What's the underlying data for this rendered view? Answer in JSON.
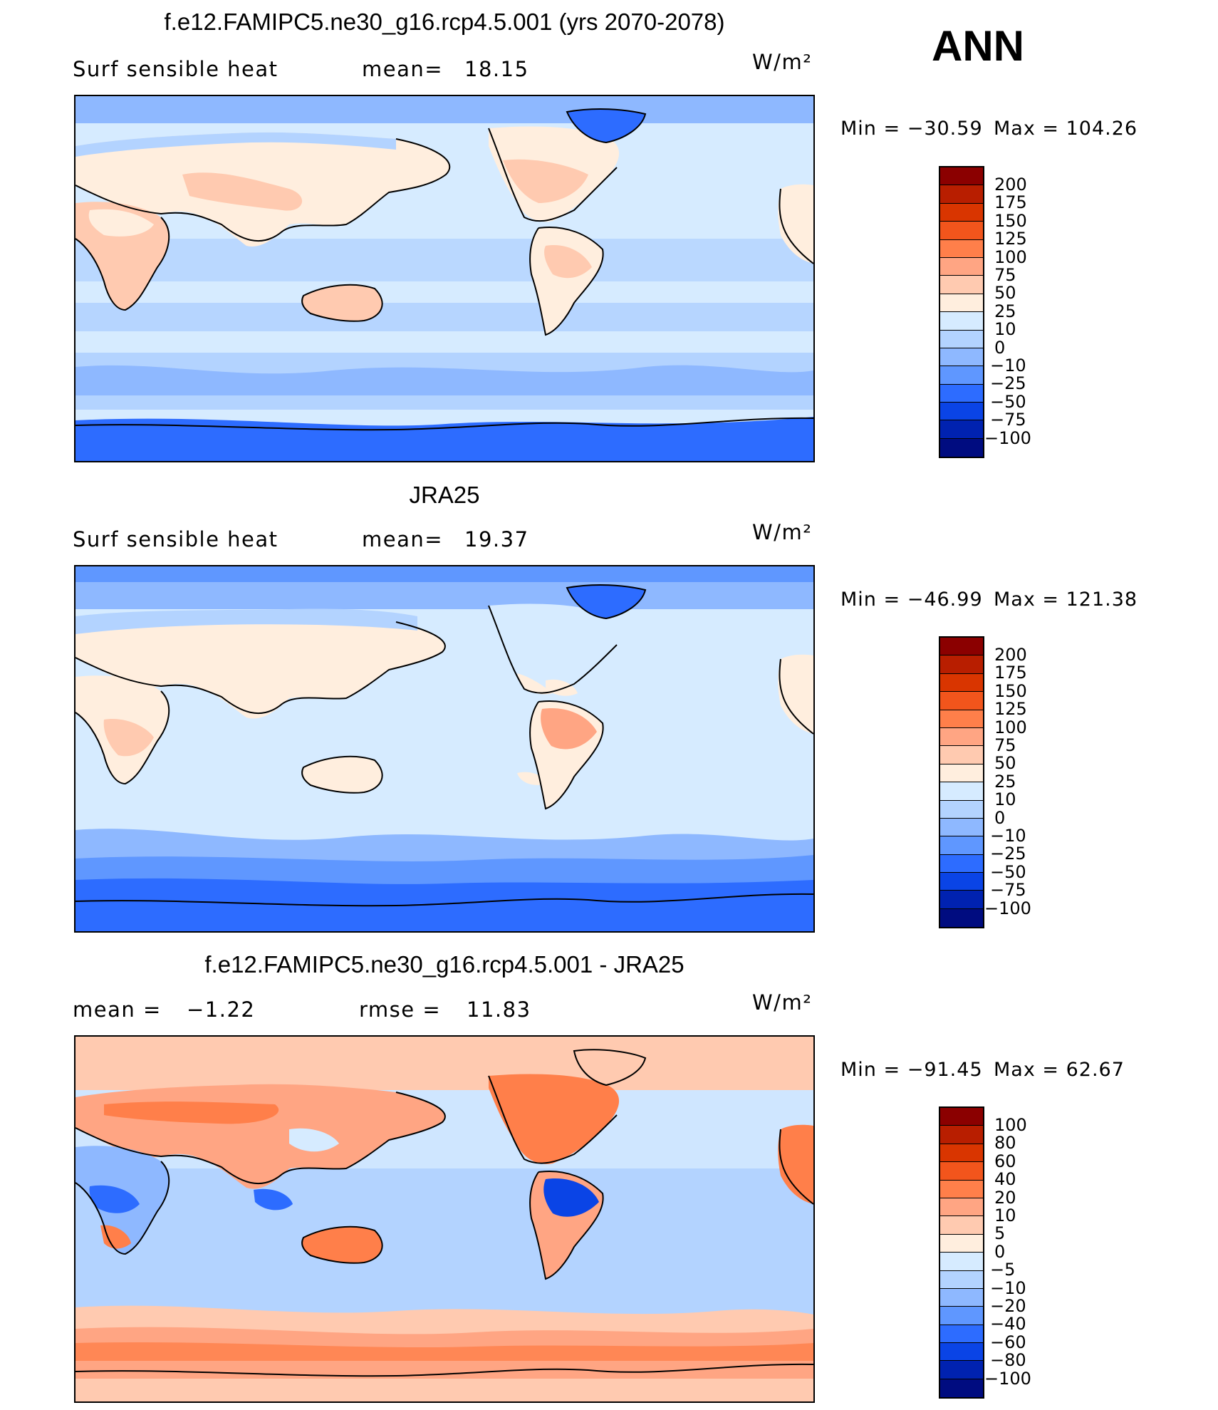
{
  "season": "ANN",
  "panels": [
    {
      "id": "model",
      "title": "f.e12.FAMIPC5.ne30_g16.rcp4.5.001 (yrs 2070-2078)",
      "left_label": "Surf sensible heat",
      "stat_label": "mean=",
      "stat_value": "18.15",
      "stat2_label": "",
      "stat2_value": "",
      "units": "W/m²",
      "min_text": "Min = −30.59",
      "max_text": "Max = 104.26",
      "colorbar": {
        "labels": [
          "200",
          "175",
          "150",
          "125",
          "100",
          "75",
          "50",
          "25",
          "10",
          "0",
          "−10",
          "−25",
          "−50",
          "−75",
          "−100"
        ],
        "colors": [
          "#8b0000",
          "#b81e00",
          "#d93500",
          "#f2551c",
          "#ff7f4a",
          "#ffa583",
          "#ffcab0",
          "#ffeede",
          "#d6ebff",
          "#b3d3ff",
          "#8eb8ff",
          "#5f97ff",
          "#2d6cff",
          "#0a44e6",
          "#0022b0",
          "#000c80"
        ]
      }
    },
    {
      "id": "obs",
      "title": "JRA25",
      "left_label": "Surf sensible heat",
      "stat_label": "mean=",
      "stat_value": "19.37",
      "stat2_label": "",
      "stat2_value": "",
      "units": "W/m²",
      "min_text": "Min = −46.99",
      "max_text": "Max = 121.38",
      "colorbar": {
        "labels": [
          "200",
          "175",
          "150",
          "125",
          "100",
          "75",
          "50",
          "25",
          "10",
          "0",
          "−10",
          "−25",
          "−50",
          "−75",
          "−100"
        ],
        "colors": [
          "#8b0000",
          "#b81e00",
          "#d93500",
          "#f2551c",
          "#ff7f4a",
          "#ffa583",
          "#ffcab0",
          "#ffeede",
          "#d6ebff",
          "#b3d3ff",
          "#8eb8ff",
          "#5f97ff",
          "#2d6cff",
          "#0a44e6",
          "#0022b0",
          "#000c80"
        ]
      }
    },
    {
      "id": "diff",
      "title": "f.e12.FAMIPC5.ne30_g16.rcp4.5.001 - JRA25",
      "left_label": "mean =",
      "stat_label": "−1.22",
      "stat_value": "",
      "stat2_label": "rmse =",
      "stat2_value": "11.83",
      "units": "W/m²",
      "min_text": "Min = −91.45",
      "max_text": "Max =  62.67",
      "colorbar": {
        "labels": [
          "100",
          "80",
          "60",
          "40",
          "20",
          "10",
          "5",
          "0",
          "−5",
          "−10",
          "−20",
          "−40",
          "−60",
          "−80",
          "−100"
        ],
        "colors": [
          "#8b0000",
          "#b81e00",
          "#d93500",
          "#f2551c",
          "#ff7f4a",
          "#ffa583",
          "#ffcab0",
          "#ffeede",
          "#d6ebff",
          "#b3d3ff",
          "#8eb8ff",
          "#5f97ff",
          "#2d6cff",
          "#0a44e6",
          "#0022b0",
          "#000c80"
        ]
      }
    }
  ]
}
